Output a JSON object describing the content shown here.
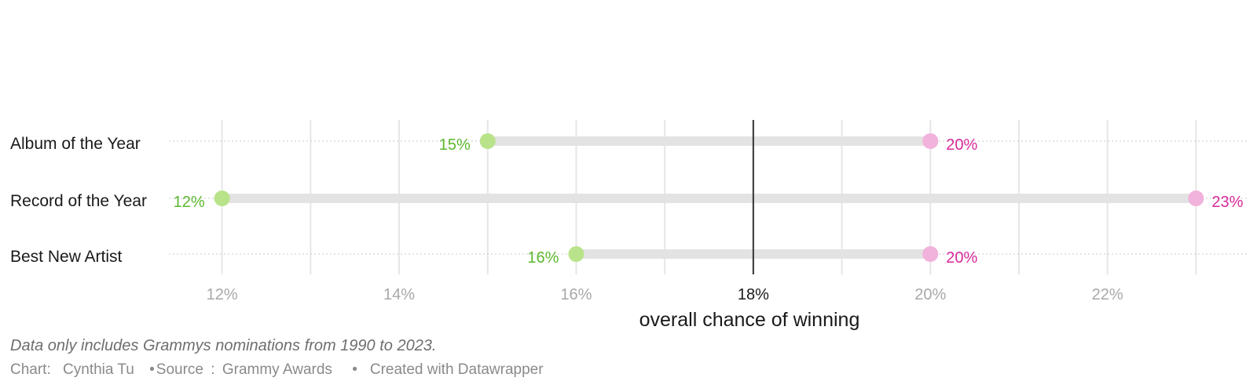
{
  "chart_data": {
    "type": "dumbbell",
    "categories": [
      "Album of the Year",
      "Record of the Year",
      "Best New Artist"
    ],
    "series": [
      {
        "values": [
          15,
          12,
          16
        ],
        "color": "#b9e38a",
        "label_color": "#5cb82e"
      },
      {
        "values": [
          20,
          23,
          20
        ],
        "color": "#f1b2dc",
        "label_color": "#d9299b"
      }
    ],
    "value_labels": {
      "start": [
        "15%",
        "12%",
        "16%"
      ],
      "end": [
        "20%",
        "23%",
        "20%"
      ]
    },
    "xlim": [
      11.4,
      23.6
    ],
    "xticks": [
      12,
      14,
      16,
      18,
      20,
      22
    ],
    "xtick_labels": [
      "12%",
      "14%",
      "16%",
      "18%",
      "20%",
      "22%"
    ],
    "reference_line": {
      "x": 18,
      "color": "#333333"
    },
    "xlabel": "overall chance of winning",
    "grid": true,
    "bar_color": "#e3e3e3"
  },
  "footer": {
    "note": "Data only includes Grammys nominations from 1990 to 2023.",
    "chart_label": "Chart:",
    "chart_author": "Cynthia Tu",
    "bullet": "•",
    "source_label": "Source",
    "source_colon": ":",
    "source_name": "Grammy Awards",
    "created_with": "Created with Datawrapper"
  }
}
